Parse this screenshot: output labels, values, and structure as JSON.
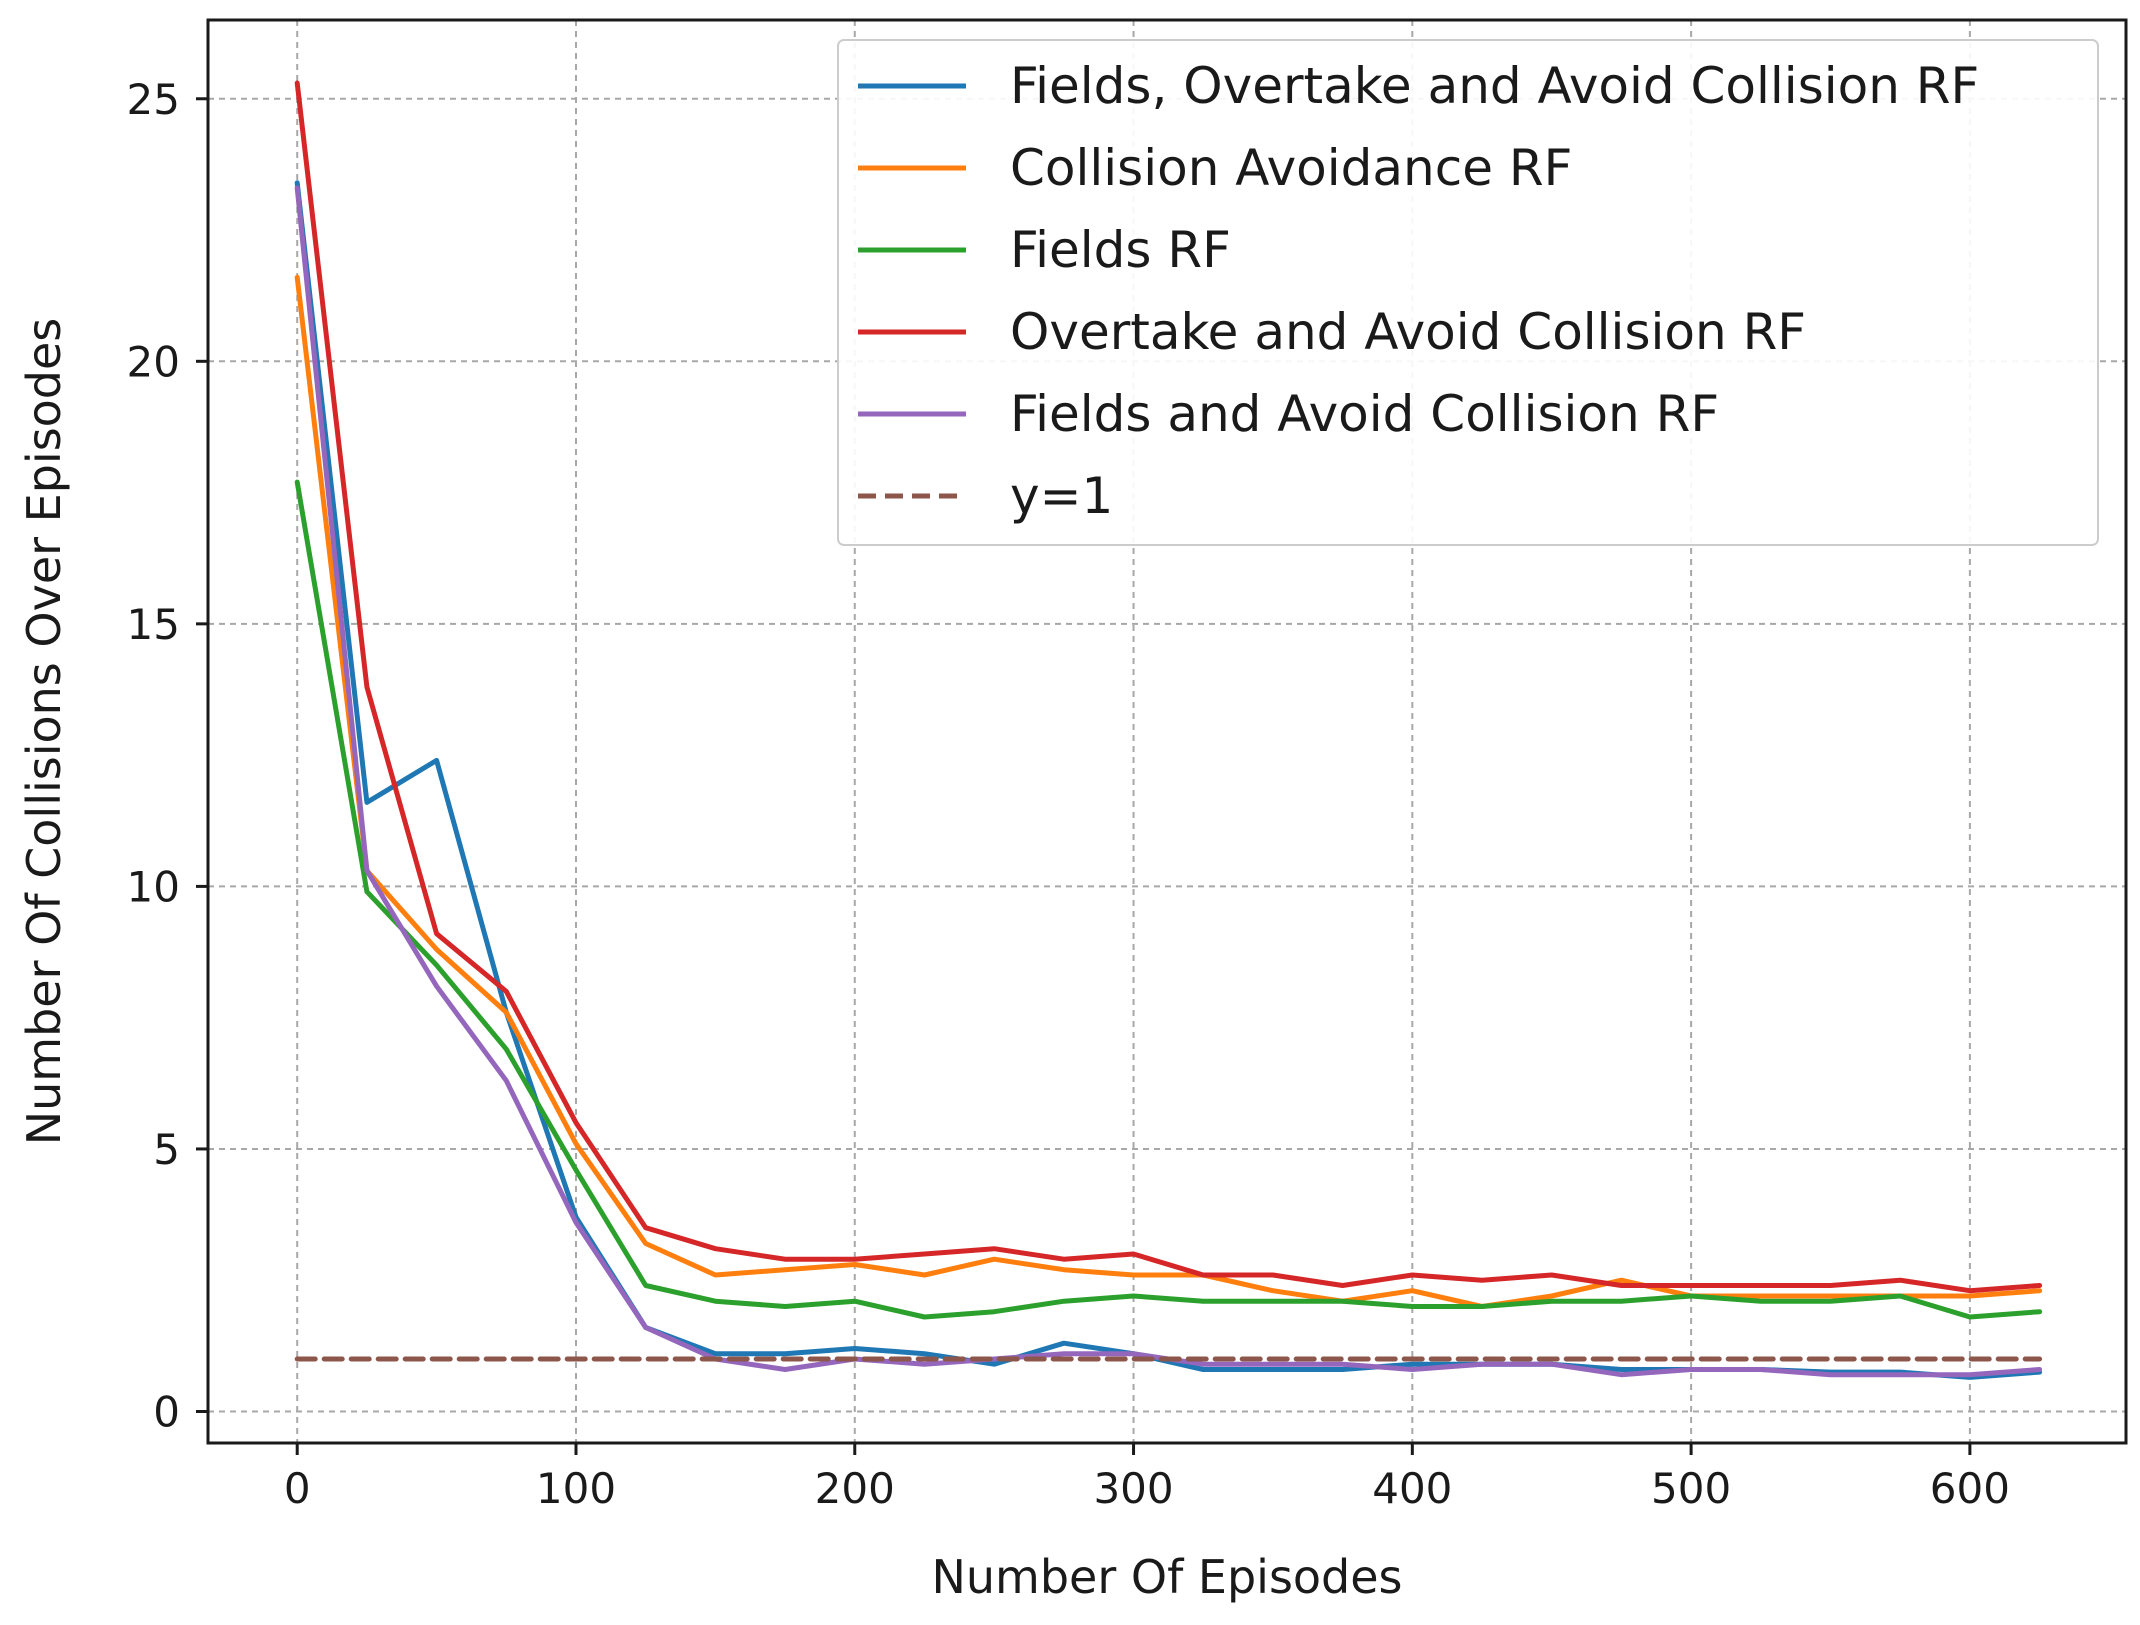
{
  "chart_data": {
    "type": "line",
    "title": "",
    "xlabel": "Number Of Episodes",
    "ylabel": "Number Of Collisions Over Episodes",
    "xlim": [
      -32,
      656
    ],
    "ylim": [
      -0.6,
      26.5
    ],
    "xticks": [
      0,
      100,
      200,
      300,
      400,
      500,
      600
    ],
    "yticks": [
      0,
      5,
      10,
      15,
      20,
      25
    ],
    "grid": true,
    "legend_position": "top-right",
    "x": [
      0,
      25,
      50,
      75,
      100,
      125,
      150,
      175,
      200,
      225,
      250,
      275,
      300,
      325,
      350,
      375,
      400,
      425,
      450,
      475,
      500,
      525,
      550,
      575,
      600,
      625
    ],
    "series": [
      {
        "name": "Fields, Overtake and Avoid Collision RF",
        "color": "#1f77b4",
        "style": "solid",
        "values": [
          23.4,
          11.6,
          12.4,
          7.6,
          3.7,
          1.6,
          1.1,
          1.1,
          1.2,
          1.1,
          0.9,
          1.3,
          1.1,
          0.8,
          0.8,
          0.8,
          0.9,
          0.9,
          0.9,
          0.8,
          0.8,
          0.8,
          0.75,
          0.75,
          0.65,
          0.75
        ]
      },
      {
        "name": "Collision Avoidance RF",
        "color": "#ff7f0e",
        "style": "solid",
        "values": [
          21.6,
          10.3,
          8.8,
          7.6,
          5.1,
          3.2,
          2.6,
          2.7,
          2.8,
          2.6,
          2.9,
          2.7,
          2.6,
          2.6,
          2.3,
          2.1,
          2.3,
          2.0,
          2.2,
          2.5,
          2.2,
          2.2,
          2.2,
          2.2,
          2.2,
          2.3
        ]
      },
      {
        "name": "Fields RF",
        "color": "#2ca02c",
        "style": "solid",
        "values": [
          17.7,
          9.9,
          8.5,
          6.9,
          4.6,
          2.4,
          2.1,
          2.0,
          2.1,
          1.8,
          1.9,
          2.1,
          2.2,
          2.1,
          2.1,
          2.1,
          2.0,
          2.0,
          2.1,
          2.1,
          2.2,
          2.1,
          2.1,
          2.2,
          1.8,
          1.9
        ]
      },
      {
        "name": "Overtake and Avoid Collision RF",
        "color": "#d62728",
        "style": "solid",
        "values": [
          25.3,
          13.8,
          9.1,
          8.0,
          5.5,
          3.5,
          3.1,
          2.9,
          2.9,
          3.0,
          3.1,
          2.9,
          3.0,
          2.6,
          2.6,
          2.4,
          2.6,
          2.5,
          2.6,
          2.4,
          2.4,
          2.4,
          2.4,
          2.5,
          2.3,
          2.4
        ]
      },
      {
        "name": "Fields and Avoid Collision RF",
        "color": "#9467bd",
        "style": "solid",
        "values": [
          23.3,
          10.3,
          8.1,
          6.3,
          3.6,
          1.6,
          1.0,
          0.8,
          1.0,
          0.9,
          1.0,
          1.1,
          1.1,
          0.9,
          0.9,
          0.9,
          0.8,
          0.9,
          0.9,
          0.7,
          0.8,
          0.8,
          0.7,
          0.7,
          0.7,
          0.8
        ]
      },
      {
        "name": "y=1",
        "color": "#8c564b",
        "style": "dashed",
        "values": [
          1,
          1,
          1,
          1,
          1,
          1,
          1,
          1,
          1,
          1,
          1,
          1,
          1,
          1,
          1,
          1,
          1,
          1,
          1,
          1,
          1,
          1,
          1,
          1,
          1,
          1
        ]
      }
    ]
  }
}
